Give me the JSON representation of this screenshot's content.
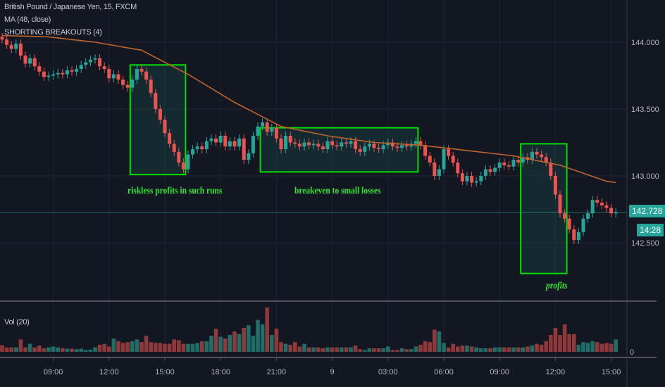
{
  "header": {
    "symbol_title": "British Pound / Japanese Yen, 15, FXCM",
    "ma_legend": "MA (48, close)",
    "indicator_legend": "SHORTING BREAKOUTS (4)",
    "volume_legend": "Vol (20)"
  },
  "price_axis": {
    "labels": [
      "144.000",
      "143.500",
      "143.000",
      "142.500"
    ],
    "current_price": "142.728",
    "countdown": "14:28",
    "volume_zero": "0"
  },
  "time_axis": {
    "labels": [
      "09:00",
      "12:00",
      "15:00",
      "18:00",
      "21:00",
      "9",
      "03:00",
      "06:00",
      "09:00",
      "12:00",
      "15:00"
    ]
  },
  "annotations": [
    {
      "text": "riskless profits in such runs"
    },
    {
      "text": "breakeven to small losses"
    },
    {
      "text": "profits"
    }
  ],
  "colors": {
    "background": "#131722",
    "up": "#26a69a",
    "down": "#ef5350",
    "ma": "#c0642a",
    "box": "#00e000",
    "annotation": "#33e633"
  },
  "chart_data": {
    "type": "candlestick",
    "interval": "15m",
    "ylim": [
      142.1,
      144.3
    ],
    "y_ticks": [
      144.0,
      143.5,
      143.0,
      142.5
    ],
    "last_price": 142.728,
    "closes": [
      144.02,
      143.98,
      143.95,
      143.99,
      143.9,
      143.84,
      143.88,
      143.82,
      143.78,
      143.74,
      143.75,
      143.76,
      143.77,
      143.76,
      143.79,
      143.78,
      143.8,
      143.83,
      143.85,
      143.87,
      143.88,
      143.82,
      143.8,
      143.73,
      143.76,
      143.72,
      143.68,
      143.66,
      143.72,
      143.8,
      143.78,
      143.72,
      143.62,
      143.5,
      143.42,
      143.32,
      143.24,
      143.18,
      143.1,
      143.05,
      143.16,
      143.2,
      143.22,
      143.2,
      143.26,
      143.28,
      143.25,
      143.3,
      143.22,
      143.26,
      143.22,
      143.28,
      143.12,
      143.17,
      143.3,
      143.37,
      143.4,
      143.33,
      143.36,
      143.28,
      143.2,
      143.3,
      143.25,
      143.24,
      143.22,
      143.25,
      143.23,
      143.24,
      143.22,
      143.2,
      143.26,
      143.23,
      143.22,
      143.25,
      143.24,
      143.26,
      143.2,
      143.18,
      143.22,
      143.24,
      143.21,
      143.2,
      143.23,
      143.25,
      143.22,
      143.21,
      143.23,
      143.22,
      143.24,
      143.26,
      143.23,
      143.15,
      143.1,
      143.0,
      143.05,
      143.2,
      143.15,
      143.1,
      143.02,
      142.96,
      143.0,
      142.95,
      142.96,
      143.0,
      143.05,
      143.03,
      143.06,
      143.1,
      143.08,
      143.07,
      143.12,
      143.1,
      143.14,
      143.12,
      143.18,
      143.16,
      143.14,
      143.1,
      143.0,
      142.86,
      142.72,
      142.68,
      142.6,
      142.52,
      142.58,
      142.68,
      142.72,
      142.82,
      142.8,
      142.78,
      142.76,
      142.72,
      142.728
    ],
    "volumes": [
      15,
      10,
      10,
      10,
      28,
      10,
      18,
      10,
      14,
      8,
      10,
      12,
      10,
      8,
      7,
      7,
      6,
      7,
      4,
      5,
      10,
      16,
      18,
      12,
      30,
      24,
      20,
      22,
      24,
      28,
      22,
      36,
      22,
      20,
      20,
      18,
      18,
      28,
      26,
      18,
      18,
      18,
      20,
      24,
      24,
      36,
      52,
      34,
      30,
      38,
      46,
      40,
      54,
      60,
      36,
      72,
      62,
      100,
      38,
      52,
      22,
      18,
      16,
      22,
      12,
      18,
      10,
      10,
      10,
      8,
      10,
      10,
      10,
      10,
      10,
      10,
      14,
      6,
      4,
      8,
      8,
      8,
      8,
      12,
      4,
      4,
      8,
      6,
      6,
      12,
      16,
      24,
      22,
      50,
      46,
      20,
      10,
      18,
      12,
      14,
      14,
      12,
      10,
      8,
      8,
      8,
      10,
      10,
      10,
      10,
      10,
      10,
      10,
      12,
      14,
      18,
      16,
      24,
      38,
      54,
      38,
      62,
      40,
      40,
      16,
      22,
      20,
      24,
      22,
      18,
      20,
      18,
      28
    ],
    "ma_48": {
      "candle_index": [
        0,
        10,
        20,
        30,
        40,
        50,
        60,
        70,
        80,
        90,
        100,
        110,
        120,
        130,
        132
      ],
      "values": [
        144.05,
        144.04,
        144.0,
        143.94,
        143.76,
        143.55,
        143.37,
        143.3,
        143.25,
        143.23,
        143.19,
        143.15,
        143.08,
        142.96,
        142.95
      ]
    },
    "time_tick_candle_index": [
      11,
      23,
      35,
      47,
      59,
      71,
      83,
      95,
      107,
      119,
      131
    ],
    "boxes": [
      {
        "from_index": 28,
        "to_index": 39,
        "price_top": 143.83,
        "price_bottom": 143.01
      },
      {
        "from_index": 56,
        "to_index": 89,
        "price_top": 143.36,
        "price_bottom": 143.03
      },
      {
        "from_index": 112,
        "to_index": 121,
        "price_top": 143.24,
        "price_bottom": 142.27
      }
    ]
  }
}
